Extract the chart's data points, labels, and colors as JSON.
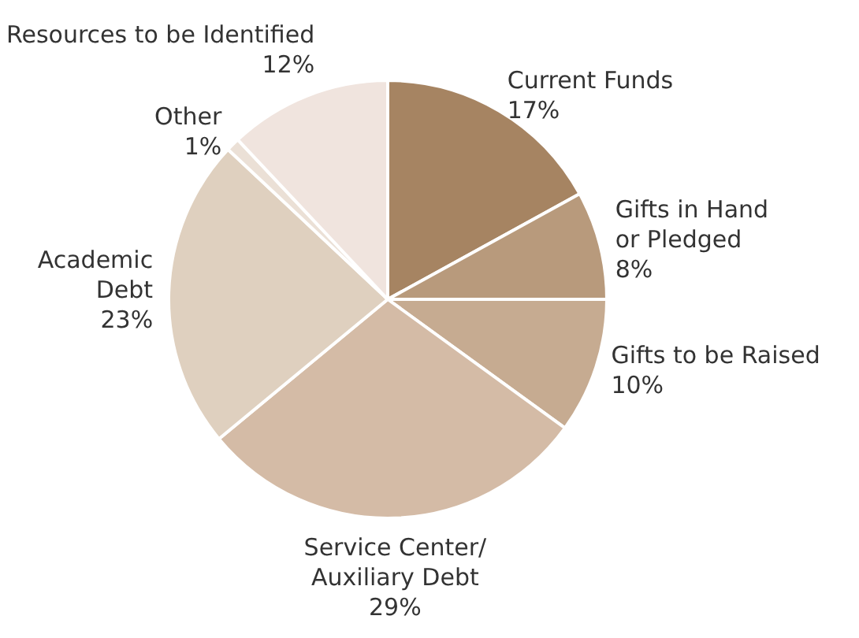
{
  "chart_data": {
    "type": "pie",
    "categories": [
      "Current Funds",
      "Gifts in Hand\nor Pledged",
      "Gifts to be Raised",
      "Service Center/\nAuxiliary Debt",
      "Academic\nDebt",
      "Other",
      "Resources to be Identified"
    ],
    "values": [
      17,
      8,
      10,
      29,
      23,
      1,
      12
    ],
    "colors": [
      "#a68462",
      "#b89a7c",
      "#c6ab91",
      "#d4bba6",
      "#dfd0bf",
      "#ebe0d6",
      "#f0e4de"
    ],
    "value_labels": [
      "17%",
      "8%",
      "10%",
      "29%",
      "23%",
      "1%",
      "12%"
    ],
    "legend": false
  }
}
